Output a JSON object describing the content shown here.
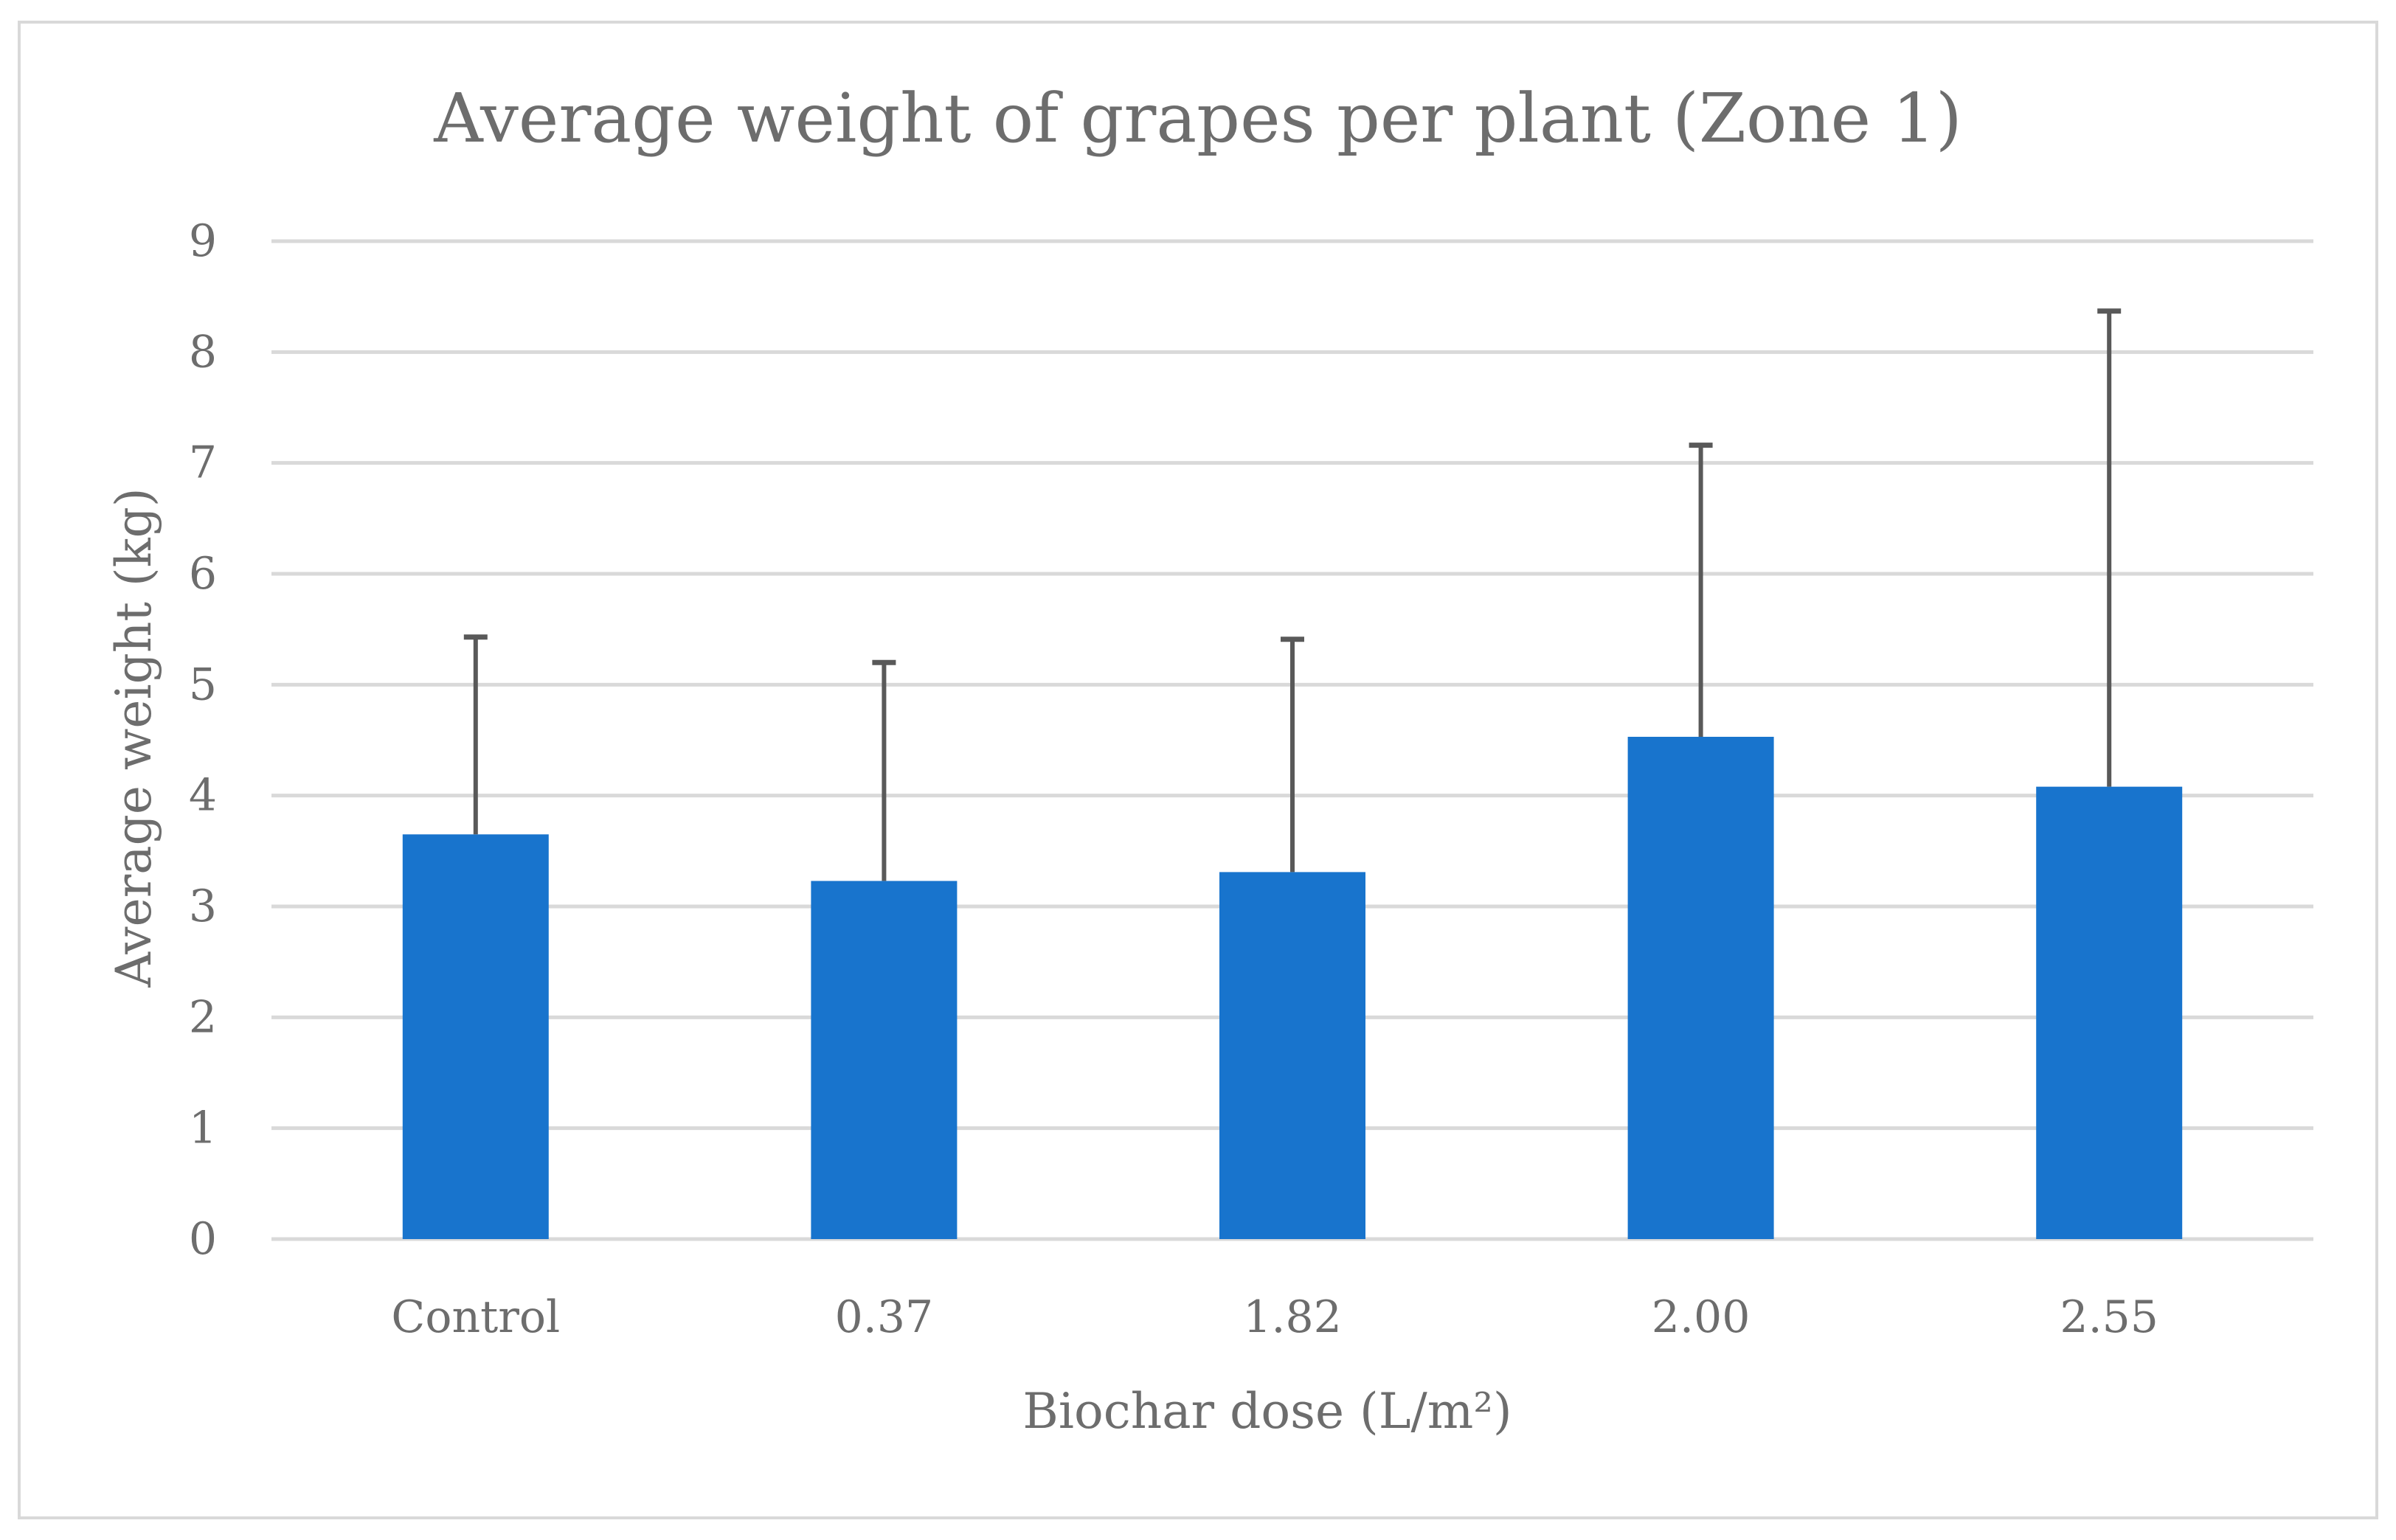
{
  "chart_data": {
    "type": "bar",
    "title": "Average weight of grapes per plant (Zone 1)",
    "xlabel": "Biochar dose (L/m²)",
    "ylabel": "Average weight (kg)",
    "categories": [
      "Control",
      "0.37",
      "1.82",
      "2.00",
      "2.55"
    ],
    "values": [
      3.65,
      3.23,
      3.31,
      4.53,
      4.08
    ],
    "error_upper": [
      1.78,
      1.97,
      2.1,
      2.63,
      4.29
    ],
    "ylim": [
      0,
      9
    ],
    "yticks": [
      "0",
      "1",
      "2",
      "3",
      "4",
      "5",
      "6",
      "7",
      "8",
      "9"
    ],
    "grid": true,
    "bar_color": "#1874cd",
    "error_bar_color": "#595959",
    "grid_color": "#d9d9d9"
  }
}
